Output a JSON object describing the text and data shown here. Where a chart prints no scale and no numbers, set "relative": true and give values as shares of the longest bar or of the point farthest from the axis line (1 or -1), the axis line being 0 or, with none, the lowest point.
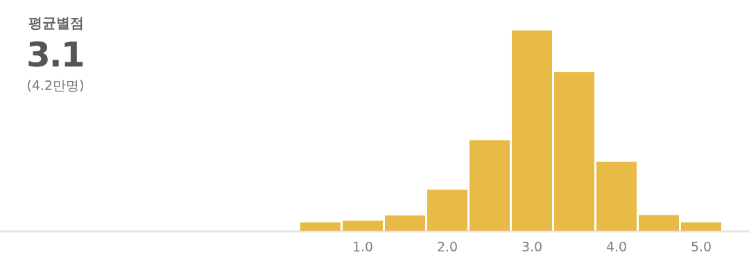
{
  "chart_data": {
    "type": "bar",
    "title": "평균별점",
    "subtitle": "3.1",
    "annotations": [
      "(4.2만명)"
    ],
    "categories": [
      null,
      "1.0",
      null,
      "2.0",
      null,
      "3.0",
      null,
      "4.0",
      null,
      "5.0"
    ],
    "values": [
      0.041,
      0.05,
      0.076,
      0.205,
      0.452,
      1,
      0.792,
      0.344,
      0.078,
      0.041
    ],
    "relative": true,
    "color": "#e8bb46"
  }
}
